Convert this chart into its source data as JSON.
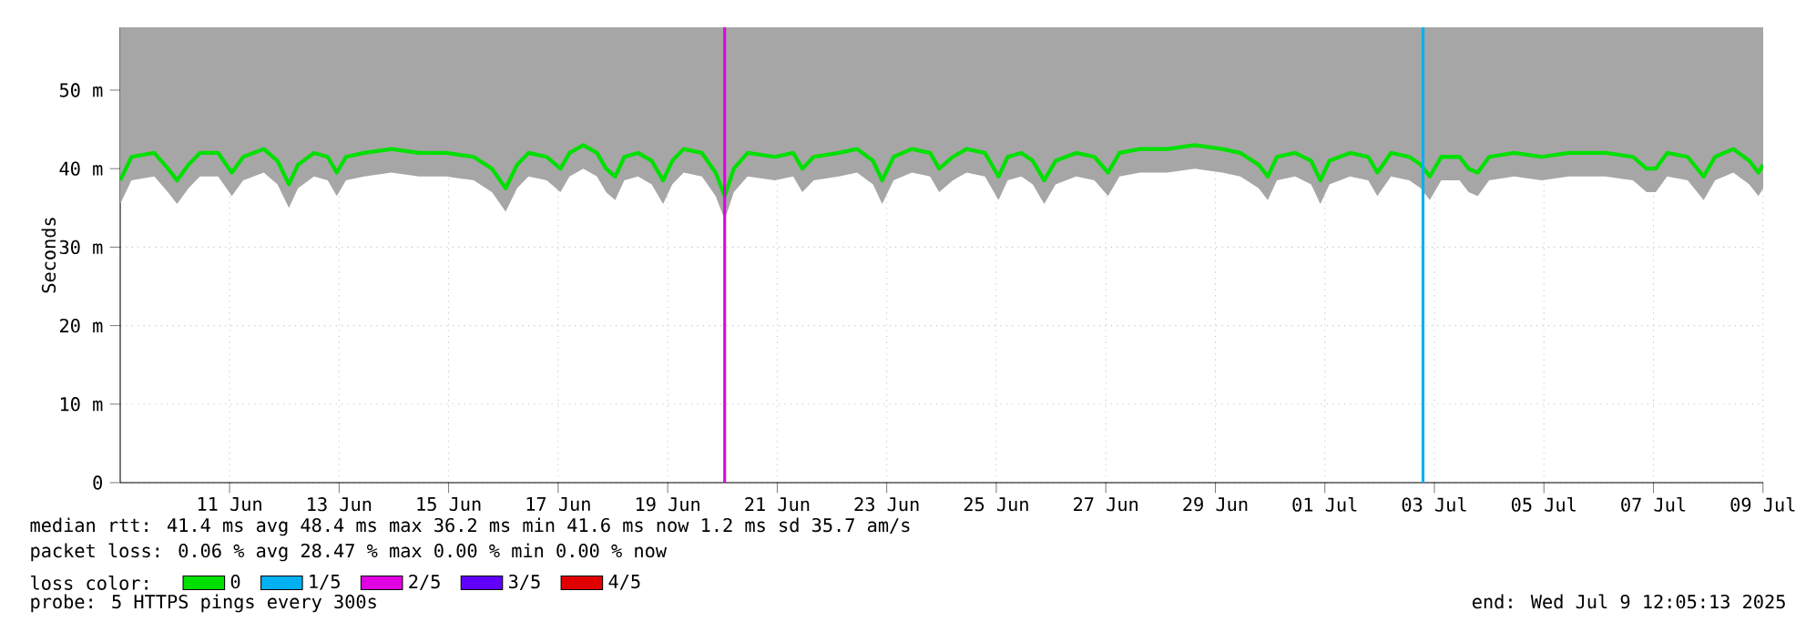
{
  "chart_data": {
    "type": "line",
    "ylabel": "Seconds",
    "xlim": [
      "2025-06-09T12:05",
      "2025-07-09T12:05"
    ],
    "xticks": [
      {
        "value": "2025-06-11T12:00",
        "label": "11 Jun"
      },
      {
        "value": "2025-06-13T12:00",
        "label": "13 Jun"
      },
      {
        "value": "2025-06-15T12:00",
        "label": "15 Jun"
      },
      {
        "value": "2025-06-17T12:00",
        "label": "17 Jun"
      },
      {
        "value": "2025-06-19T12:00",
        "label": "19 Jun"
      },
      {
        "value": "2025-06-21T12:00",
        "label": "21 Jun"
      },
      {
        "value": "2025-06-23T12:00",
        "label": "23 Jun"
      },
      {
        "value": "2025-06-25T12:00",
        "label": "25 Jun"
      },
      {
        "value": "2025-06-27T12:00",
        "label": "27 Jun"
      },
      {
        "value": "2025-06-29T12:00",
        "label": "29 Jun"
      },
      {
        "value": "2025-07-01T12:00",
        "label": "01 Jul"
      },
      {
        "value": "2025-07-03T12:00",
        "label": "03 Jul"
      },
      {
        "value": "2025-07-05T12:00",
        "label": "05 Jul"
      },
      {
        "value": "2025-07-07T12:00",
        "label": "07 Jul"
      },
      {
        "value": "2025-07-09T12:00",
        "label": "09 Jul"
      }
    ],
    "ylim": [
      0,
      58
    ],
    "yticks": [
      0,
      {
        "value": 10,
        "label": "10 m"
      },
      {
        "value": 20,
        "label": "20 m"
      },
      {
        "value": 30,
        "label": "30 m"
      },
      {
        "value": 40,
        "label": "40 m"
      },
      {
        "value": 50,
        "label": "50 m"
      }
    ],
    "grid": true,
    "legend": "bottom",
    "legend_title": "loss color:",
    "series": [
      {
        "name": "0",
        "color": "#00e000",
        "x": [
          "2025-06-09T12:05",
          "2025-06-09T17:00",
          "2025-06-10T03:00",
          "2025-06-10T09:00",
          "2025-06-10T13:00",
          "2025-06-10T18:00",
          "2025-06-10T23:00",
          "2025-06-11T07:00",
          "2025-06-11T13:00",
          "2025-06-11T18:00",
          "2025-06-12T03:00",
          "2025-06-12T09:00",
          "2025-06-12T14:00",
          "2025-06-12T18:00",
          "2025-06-13T01:00",
          "2025-06-13T07:00",
          "2025-06-13T11:00",
          "2025-06-13T15:00",
          "2025-06-13T23:00",
          "2025-06-14T11:00",
          "2025-06-14T23:00",
          "2025-06-15T11:00",
          "2025-06-15T23:00",
          "2025-06-16T07:00",
          "2025-06-16T13:00",
          "2025-06-16T18:00",
          "2025-06-16T23:00",
          "2025-06-17T07:00",
          "2025-06-17T13:00",
          "2025-06-17T17:00",
          "2025-06-17T23:00",
          "2025-06-18T05:00",
          "2025-06-18T09:00",
          "2025-06-18T13:00",
          "2025-06-18T17:00",
          "2025-06-18T23:00",
          "2025-06-19T05:00",
          "2025-06-19T10:00",
          "2025-06-19T14:00",
          "2025-06-19T19:00",
          "2025-06-20T03:00",
          "2025-06-20T09:00",
          "2025-06-20T13:00",
          "2025-06-20T17:00",
          "2025-06-20T23:00",
          "2025-06-21T11:00",
          "2025-06-21T19:00",
          "2025-06-21T23:00",
          "2025-06-22T04:00",
          "2025-06-22T15:00",
          "2025-06-22T23:00",
          "2025-06-23T06:00",
          "2025-06-23T10:00",
          "2025-06-23T15:00",
          "2025-06-23T23:00",
          "2025-06-24T07:00",
          "2025-06-24T11:00",
          "2025-06-24T17:00",
          "2025-06-24T23:00",
          "2025-06-25T07:00",
          "2025-06-25T13:00",
          "2025-06-25T17:00",
          "2025-06-25T23:00",
          "2025-06-26T04:00",
          "2025-06-26T09:00",
          "2025-06-26T14:00",
          "2025-06-26T23:00",
          "2025-06-27T07:00",
          "2025-06-27T13:00",
          "2025-06-27T18:00",
          "2025-06-28T03:00",
          "2025-06-28T15:00",
          "2025-06-29T03:00",
          "2025-06-29T15:00",
          "2025-06-29T23:00",
          "2025-06-30T07:00",
          "2025-06-30T11:00",
          "2025-06-30T15:00",
          "2025-06-30T23:00",
          "2025-07-01T06:00",
          "2025-07-01T10:00",
          "2025-07-01T14:00",
          "2025-07-01T23:00",
          "2025-07-02T07:00",
          "2025-07-02T11:00",
          "2025-07-02T17:00",
          "2025-07-03T01:00",
          "2025-07-03T06:00",
          "2025-07-03T10:00",
          "2025-07-03T15:00",
          "2025-07-03T23:00",
          "2025-07-04T03:00",
          "2025-07-04T07:00",
          "2025-07-04T12:00",
          "2025-07-04T23:00",
          "2025-07-05T11:00",
          "2025-07-05T23:00",
          "2025-07-06T15:00",
          "2025-07-07T03:00",
          "2025-07-07T09:00",
          "2025-07-07T13:00",
          "2025-07-07T18:00",
          "2025-07-08T03:00",
          "2025-07-08T10:00",
          "2025-07-08T15:00",
          "2025-07-08T23:00",
          "2025-07-09T06:00",
          "2025-07-09T10:00",
          "2025-07-09T12:05"
        ],
        "values": [
          38.5,
          41.5,
          42,
          40,
          38.5,
          40.5,
          42,
          42,
          39.5,
          41.5,
          42.5,
          41,
          38,
          40.5,
          42,
          41.5,
          39.5,
          41.5,
          42,
          42.5,
          42,
          42,
          41.5,
          40,
          37.5,
          40.5,
          42,
          41.5,
          40,
          42,
          43,
          42,
          40,
          39,
          41.5,
          42,
          41,
          38.5,
          41,
          42.5,
          42,
          39.5,
          36.5,
          40,
          42,
          41.5,
          42,
          40,
          41.5,
          42,
          42.5,
          41,
          38.5,
          41.5,
          42.5,
          42,
          40,
          41.5,
          42.5,
          42,
          39,
          41.5,
          42,
          41,
          38.5,
          41,
          42,
          41.5,
          39.5,
          42,
          42.5,
          42.5,
          43,
          42.5,
          42,
          40.5,
          39,
          41.5,
          42,
          41,
          38.5,
          41,
          42,
          41.5,
          39.5,
          42,
          41.5,
          40.5,
          39,
          41.5,
          41.5,
          40,
          39.5,
          41.5,
          42,
          41.5,
          42,
          42,
          41.5,
          40,
          40,
          42,
          41.5,
          39,
          41.5,
          42.5,
          41,
          39.5,
          40.5
        ],
        "lower": [
          35.5,
          38.5,
          39,
          37,
          35.5,
          37.5,
          39,
          39,
          36.5,
          38.5,
          39.5,
          38,
          35,
          37.5,
          39,
          38.5,
          36.5,
          38.5,
          39,
          39.5,
          39,
          39,
          38.5,
          37,
          34.5,
          37.5,
          39,
          38.5,
          37,
          39,
          40,
          39,
          37,
          36,
          38.5,
          39,
          38,
          35.5,
          38,
          39.5,
          39,
          36.5,
          33.5,
          37,
          39,
          38.5,
          39,
          37,
          38.5,
          39,
          39.5,
          38,
          35.5,
          38.5,
          39.5,
          39,
          37,
          38.5,
          39.5,
          39,
          36,
          38.5,
          39,
          38,
          35.5,
          38,
          39,
          38.5,
          36.5,
          39,
          39.5,
          39.5,
          40,
          39.5,
          39,
          37.5,
          36,
          38.5,
          39,
          38,
          35.5,
          38,
          39,
          38.5,
          36.5,
          39,
          38.5,
          37.5,
          36,
          38.5,
          38.5,
          37,
          36.5,
          38.5,
          39,
          38.5,
          39,
          39,
          38.5,
          37,
          37,
          39,
          38.5,
          36,
          38.5,
          39.5,
          38,
          36.5,
          37.5
        ],
        "upper": [
          58,
          58,
          58,
          58,
          58,
          58,
          58,
          58,
          58,
          58,
          58,
          58,
          58,
          58,
          58,
          58,
          58,
          58,
          58,
          58,
          58,
          58,
          58,
          58,
          58,
          58,
          58,
          58,
          58,
          58,
          58,
          58,
          58,
          58,
          58,
          58,
          58,
          58,
          58,
          58,
          58,
          58,
          58,
          58,
          58,
          58,
          58,
          58,
          58,
          58,
          58,
          58,
          58,
          58,
          58,
          58,
          58,
          58,
          58,
          58,
          58,
          58,
          58,
          58,
          58,
          58,
          58,
          58,
          58,
          58,
          58,
          58,
          58,
          58,
          58,
          58,
          58,
          58,
          58,
          58,
          58,
          58,
          58,
          58,
          58,
          58,
          58,
          58,
          58,
          58,
          58,
          58,
          58,
          58,
          58,
          58,
          58,
          58,
          58,
          58,
          58,
          58,
          58,
          58,
          58,
          58,
          58,
          58,
          58
        ]
      },
      {
        "name": "1/5",
        "color": "#00b0f0",
        "type": "bar",
        "x": [
          "2025-07-03T07:00"
        ],
        "values": [
          58
        ]
      },
      {
        "name": "2/5",
        "color": "#e000e0",
        "type": "bar",
        "x": [
          "2025-06-20T13:00"
        ],
        "values": [
          58
        ]
      },
      {
        "name": "3/5",
        "color": "#6000ff",
        "type": "bar"
      },
      {
        "name": "4/5",
        "color": "#e00000",
        "type": "bar"
      }
    ],
    "annotations": [
      "median rtt:  41.4 ms avg  48.4 ms max  36.2 ms min  41.6 ms now  1.2 ms sd  35.7   am/s",
      "packet loss: 0.06 % avg  28.47 % max  0.00 % min  0.00 % now",
      "probe:       5 HTTPS pings every 300s",
      "end: Wed Jul  9 12:05:13 2025"
    ]
  }
}
